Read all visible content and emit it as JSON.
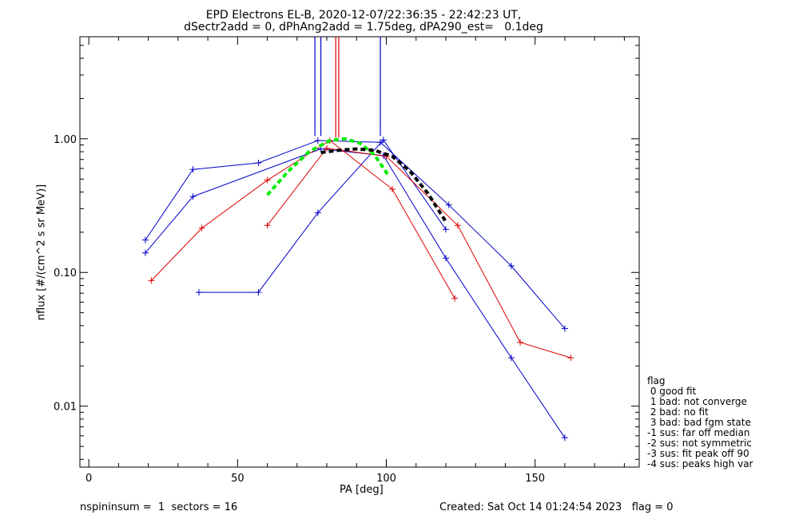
{
  "title_line1": "EPD Electrons EL-B, 2020-12-07/22:36:35 - 22:42:23 UT,",
  "title_line2": "dSectr2add = 0, dPhAng2add = 1.75deg, dPA290_est=   0.1deg",
  "footer_left": "nspininsum =  1  sectors = 16",
  "footer_right": "Created: Sat Oct 14 01:24:54 2023   flag = 0",
  "legend": {
    "title": "flag",
    "items": [
      " 0 good fit",
      " 1 bad: not converge",
      " 2 bad: no fit",
      " 3 bad: bad fgm state",
      "-1 sus: far off median",
      "-2 sus: not symmetric",
      "-3 sus: fit peak off 90",
      "-4 sus: peaks high var"
    ]
  },
  "colors": {
    "blue": "#0000cc",
    "red": "#dd0000",
    "green": "#00ee00",
    "black": "#000000"
  },
  "chart_data": {
    "type": "line",
    "xlabel": "PA [deg]",
    "ylabel": "nflux [#/(cm^2 s sr MeV)]",
    "xlim": [
      -3,
      185
    ],
    "ylim": [
      0.0035,
      5.8
    ],
    "yscale": "log",
    "xticks": [
      0,
      50,
      100,
      150
    ],
    "xtick_labels": [
      "0",
      "50",
      "100",
      "150"
    ],
    "yticks": [
      0.01,
      0.1,
      1.0
    ],
    "ytick_labels": [
      "0.01",
      "0.10",
      "1.00"
    ],
    "series": [
      {
        "color": "blue",
        "style": "line-plus",
        "x": [
          19,
          35,
          57,
          77,
          98,
          121,
          142,
          160
        ],
        "y": [
          0.175,
          0.59,
          0.66,
          0.97,
          0.94,
          0.32,
          0.112,
          0.038
        ]
      },
      {
        "color": "blue",
        "style": "line-plus",
        "x": [
          19,
          35,
          78,
          99,
          120,
          142,
          160
        ],
        "y": [
          0.14,
          0.37,
          0.84,
          0.75,
          0.128,
          0.023,
          0.0058
        ]
      },
      {
        "color": "blue",
        "style": "line-plus",
        "x": [
          37,
          57,
          77,
          99,
          120
        ],
        "y": [
          0.071,
          0.071,
          0.28,
          0.98,
          0.21
        ]
      },
      {
        "color": "red",
        "style": "line-plus",
        "x": [
          21,
          38,
          60,
          81,
          102,
          123
        ],
        "y": [
          0.087,
          0.215,
          0.49,
          0.97,
          0.42,
          0.064
        ]
      },
      {
        "color": "red",
        "style": "line-plus",
        "x": [
          60,
          80,
          100,
          124,
          145,
          162
        ],
        "y": [
          0.225,
          0.85,
          0.74,
          0.225,
          0.03,
          0.023
        ]
      },
      {
        "color": "green",
        "style": "dashed",
        "x": [
          60,
          67,
          74,
          81,
          86,
          91,
          96,
          101
        ],
        "y": [
          0.38,
          0.57,
          0.8,
          0.97,
          1.0,
          0.93,
          0.76,
          0.52
        ]
      },
      {
        "color": "black",
        "style": "dashed",
        "x": [
          78,
          84,
          90,
          96,
          102,
          108,
          114,
          120
        ],
        "y": [
          0.79,
          0.82,
          0.84,
          0.82,
          0.74,
          0.57,
          0.39,
          0.24
        ]
      }
    ],
    "vlines": [
      {
        "x": 76,
        "color": "blue"
      },
      {
        "x": 78,
        "color": "blue"
      },
      {
        "x": 83,
        "color": "red"
      },
      {
        "x": 84,
        "color": "red"
      },
      {
        "x": 98,
        "color": "blue"
      }
    ]
  }
}
